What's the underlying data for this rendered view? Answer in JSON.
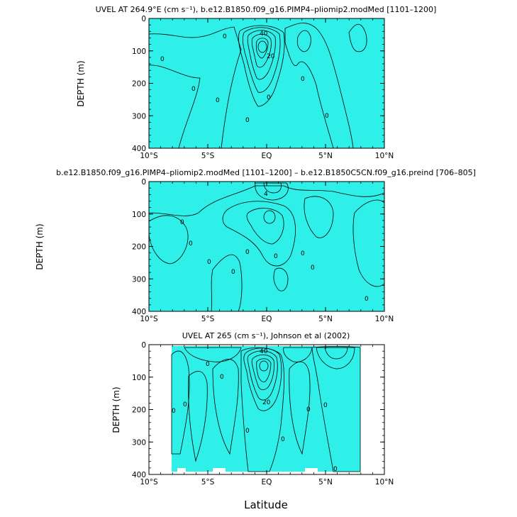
{
  "chart_data": [
    {
      "type": "heatmap",
      "title": "UVEL AT 264.9°E (cm s⁻¹), b.e12.B1850.f09_g16.PIMP4–pliomip2.modMed [1101–1200]",
      "ylabel": "DEPTH (m)",
      "xlabel": "",
      "xlim": [
        -10,
        10
      ],
      "ylim": [
        400,
        0
      ],
      "x_ticks": [
        "10°S",
        "5°S",
        "EQ",
        "5°N",
        "10°N"
      ],
      "y_ticks": [
        "0",
        "100",
        "200",
        "300",
        "400"
      ],
      "contour_labels": [
        "0",
        "0",
        "0",
        "0",
        "0",
        "0",
        "0",
        "0",
        "40",
        "20"
      ],
      "core": {
        "lat": -0.2,
        "depth": 70,
        "max_value": 90
      }
    },
    {
      "type": "heatmap",
      "title": "b.e12.B1850.f09_g16.PIMP4–pliomip2.modMed [1101–1200] – b.e12.B1850C5CN.f09_g16.preind [706–805]",
      "ylabel": "DEPTH (m)",
      "xlabel": "",
      "xlim": [
        -10,
        10
      ],
      "ylim": [
        400,
        0
      ],
      "x_ticks": [
        "10°S",
        "5°S",
        "EQ",
        "5°N",
        "10°N"
      ],
      "y_ticks": [
        "0",
        "100",
        "200",
        "300",
        "400"
      ],
      "contour_labels": [
        "0",
        "0",
        "0",
        "0",
        "0",
        "0",
        "0",
        "0",
        "0",
        "4"
      ]
    },
    {
      "type": "heatmap",
      "title": "UVEL AT 265 (cm s⁻¹), Johnson et al (2002)",
      "ylabel": "DEPTH (m)",
      "xlabel": "Latitude",
      "xlim": [
        -10,
        10
      ],
      "ylim": [
        400,
        0
      ],
      "x_ticks": [
        "10°S",
        "5°S",
        "EQ",
        "5°N",
        "10°N"
      ],
      "y_ticks": [
        "0",
        "100",
        "200",
        "300",
        "400"
      ],
      "contour_labels": [
        "0",
        "0",
        "0",
        "0",
        "0",
        "0",
        "0",
        "0",
        "0",
        "40",
        "20"
      ],
      "data_lat_range": [
        -8,
        8
      ],
      "core": {
        "lat": -0.2,
        "depth": 70,
        "max_value": 100
      }
    }
  ],
  "colors": {
    "background": "#00ffff",
    "light_cyan": "#33eef0",
    "green": "#00ff00",
    "light_green": "#66e844",
    "yellow": "#ffff33",
    "orange": "#ffaa22",
    "red_orange": "#ff5a22",
    "blue": "#3399ff"
  }
}
